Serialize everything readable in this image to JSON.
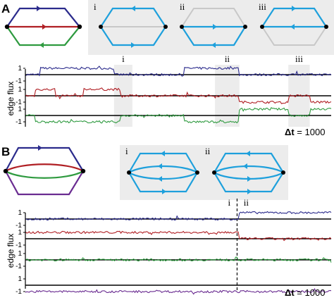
{
  "panels": [
    {
      "label": "A",
      "colors": {
        "top": "#2b2b8c",
        "middle": "#b01f24",
        "bottom": "#2e9a3f",
        "state": "#1ea0dc",
        "inactive": "#c8c8c8",
        "shade": "#ececec"
      },
      "state_labels": [
        "i",
        "ii",
        "iii"
      ],
      "window_labels": [
        "i",
        "ii",
        "iii"
      ],
      "ylabel": "edge flux",
      "timescale": {
        "symbol": "Δt",
        "text": " = 1000"
      },
      "yticks": [
        "1",
        "-1"
      ]
    },
    {
      "label": "B",
      "colors": {
        "top": "#2b2b8c",
        "middle": "#b01f24",
        "lower": "#2e9a3f",
        "bottom": "#6a2c91",
        "state": "#1ea0dc",
        "shade": "#ececec"
      },
      "state_labels": [
        "i",
        "ii"
      ],
      "window_labels": [
        "i",
        "ii"
      ],
      "ylabel": "edge flux",
      "timescale": {
        "symbol": "Δt",
        "text": " = 1000"
      },
      "yticks": [
        "1",
        "-1"
      ]
    }
  ],
  "chart_data": [
    {
      "type": "line",
      "panel": "A",
      "ylabel": "edge flux",
      "ylim": [
        -1.3,
        1.3
      ],
      "x": [
        0,
        0.03,
        0.05,
        0.1,
        0.19,
        0.29,
        0.31,
        0.35,
        0.42,
        0.52,
        0.62,
        0.7,
        0.8,
        0.86,
        0.93,
        1.0
      ],
      "series": [
        {
          "values": [
            0,
            0,
            1,
            1,
            1,
            0,
            0,
            0,
            0,
            1,
            1,
            0,
            0,
            0,
            0,
            0
          ]
        },
        {
          "values": [
            0,
            1,
            1,
            0,
            1,
            1,
            0,
            0,
            0,
            0,
            0,
            -1,
            -1,
            0,
            -1,
            -1
          ]
        },
        {
          "values": [
            0,
            -1,
            -1,
            -1,
            -1,
            -1,
            0,
            0,
            0,
            -1,
            -1,
            1,
            1,
            0,
            1,
            1
          ]
        }
      ],
      "windows": [
        {
          "label": "i",
          "x": [
            0.29,
            0.35
          ]
        },
        {
          "label": "ii",
          "x": [
            0.62,
            0.7
          ]
        },
        {
          "label": "iii",
          "x": [
            0.86,
            0.93
          ]
        }
      ]
    },
    {
      "type": "line",
      "panel": "B",
      "ylabel": "edge flux",
      "ylim": [
        -1.3,
        1.3
      ],
      "x": [
        0,
        0.69,
        0.7,
        1.0
      ],
      "series": [
        {
          "values": [
            0,
            0,
            1,
            1
          ]
        },
        {
          "values": [
            1,
            1,
            0,
            0
          ]
        },
        {
          "values": [
            0,
            0,
            0,
            0
          ]
        },
        {
          "values": [
            -1,
            -1,
            -1,
            -1
          ]
        }
      ],
      "windows": [
        {
          "label": "i",
          "x": [
            0.69,
            0.69
          ]
        },
        {
          "label": "ii",
          "x": [
            0.7,
            0.7
          ]
        }
      ]
    }
  ]
}
